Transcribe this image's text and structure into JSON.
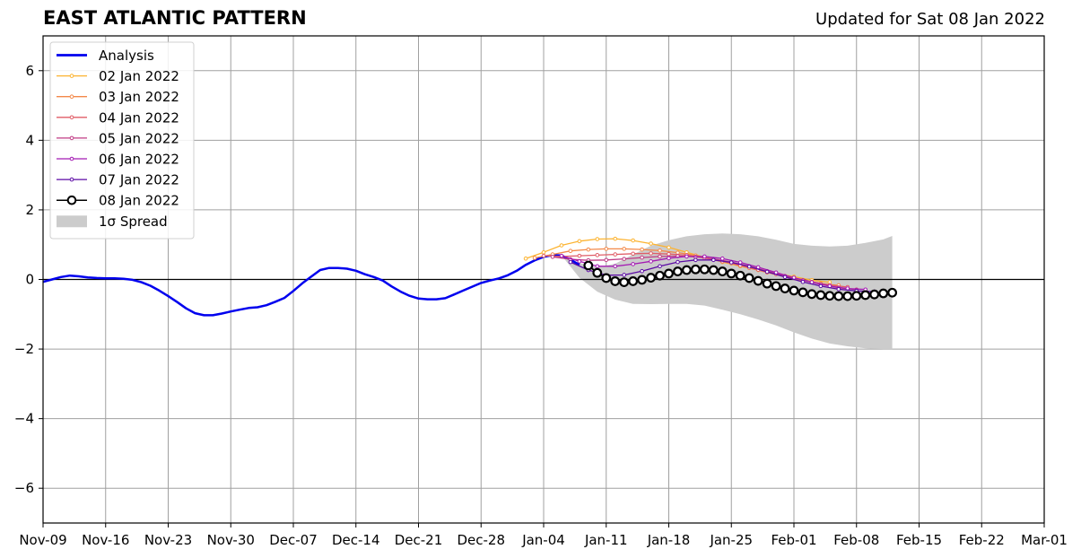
{
  "header": {
    "title": "EAST ATLANTIC PATTERN",
    "updated": "Updated for Sat 08 Jan 2022"
  },
  "chart_data": {
    "type": "line",
    "title": "EAST ATLANTIC PATTERN",
    "xlabel": "",
    "ylabel": "",
    "xlim": [
      "2021-11-09",
      "2022-03-01"
    ],
    "ylim": [
      -7,
      7
    ],
    "grid": true,
    "legend_position": "top-left",
    "x_ticks": [
      "Nov-09",
      "Nov-16",
      "Nov-23",
      "Nov-30",
      "Dec-07",
      "Dec-14",
      "Dec-21",
      "Dec-28",
      "Jan-04",
      "Jan-11",
      "Jan-18",
      "Jan-25",
      "Feb-01",
      "Feb-08",
      "Feb-15",
      "Feb-22",
      "Mar-01"
    ],
    "y_ticks": [
      -6,
      -4,
      -2,
      0,
      2,
      4,
      6
    ],
    "y_tick_labels": [
      "−6",
      "−4",
      "−2",
      "0",
      "2",
      "4",
      "6"
    ],
    "analysis": {
      "name": "Analysis",
      "color": "#0000ee",
      "points": [
        [
          "2021-11-09",
          -0.07
        ],
        [
          "2021-11-10",
          0.0
        ],
        [
          "2021-11-11",
          0.07
        ],
        [
          "2021-11-12",
          0.11
        ],
        [
          "2021-11-13",
          0.09
        ],
        [
          "2021-11-14",
          0.06
        ],
        [
          "2021-11-15",
          0.04
        ],
        [
          "2021-11-16",
          0.03
        ],
        [
          "2021-11-17",
          0.03
        ],
        [
          "2021-11-18",
          0.02
        ],
        [
          "2021-11-19",
          -0.01
        ],
        [
          "2021-11-20",
          -0.08
        ],
        [
          "2021-11-21",
          -0.18
        ],
        [
          "2021-11-22",
          -0.32
        ],
        [
          "2021-11-23",
          -0.48
        ],
        [
          "2021-11-24",
          -0.65
        ],
        [
          "2021-11-25",
          -0.83
        ],
        [
          "2021-11-26",
          -0.97
        ],
        [
          "2021-11-27",
          -1.03
        ],
        [
          "2021-11-28",
          -1.03
        ],
        [
          "2021-11-29",
          -0.98
        ],
        [
          "2021-11-30",
          -0.92
        ],
        [
          "2021-12-01",
          -0.87
        ],
        [
          "2021-12-02",
          -0.82
        ],
        [
          "2021-12-03",
          -0.8
        ],
        [
          "2021-12-04",
          -0.74
        ],
        [
          "2021-12-05",
          -0.64
        ],
        [
          "2021-12-06",
          -0.53
        ],
        [
          "2021-12-07",
          -0.33
        ],
        [
          "2021-12-08",
          -0.11
        ],
        [
          "2021-12-09",
          0.08
        ],
        [
          "2021-12-10",
          0.27
        ],
        [
          "2021-12-11",
          0.33
        ],
        [
          "2021-12-12",
          0.33
        ],
        [
          "2021-12-13",
          0.31
        ],
        [
          "2021-12-14",
          0.25
        ],
        [
          "2021-12-15",
          0.15
        ],
        [
          "2021-12-16",
          0.07
        ],
        [
          "2021-12-17",
          -0.03
        ],
        [
          "2021-12-18",
          -0.2
        ],
        [
          "2021-12-19",
          -0.35
        ],
        [
          "2021-12-20",
          -0.47
        ],
        [
          "2021-12-21",
          -0.55
        ],
        [
          "2021-12-22",
          -0.57
        ],
        [
          "2021-12-23",
          -0.57
        ],
        [
          "2021-12-24",
          -0.54
        ],
        [
          "2021-12-25",
          -0.43
        ],
        [
          "2021-12-26",
          -0.32
        ],
        [
          "2021-12-27",
          -0.21
        ],
        [
          "2021-12-28",
          -0.1
        ],
        [
          "2021-12-29",
          -0.03
        ],
        [
          "2021-12-30",
          0.03
        ],
        [
          "2021-12-31",
          0.12
        ],
        [
          "2022-01-01",
          0.25
        ],
        [
          "2022-01-02",
          0.42
        ],
        [
          "2022-01-03",
          0.55
        ],
        [
          "2022-01-04",
          0.65
        ],
        [
          "2022-01-05",
          0.7
        ],
        [
          "2022-01-06",
          0.69
        ],
        [
          "2022-01-07",
          0.57
        ],
        [
          "2022-01-08",
          0.42
        ]
      ]
    },
    "spread": {
      "name": "1σ Spread",
      "color": "#cccccc",
      "dates": [
        "2022-01-06",
        "2022-01-08",
        "2022-01-10",
        "2022-01-12",
        "2022-01-14",
        "2022-01-16",
        "2022-01-18",
        "2022-01-20",
        "2022-01-22",
        "2022-01-24",
        "2022-01-26",
        "2022-01-28",
        "2022-01-30",
        "2022-02-01",
        "2022-02-03",
        "2022-02-05",
        "2022-02-07",
        "2022-02-09",
        "2022-02-11",
        "2022-02-12"
      ],
      "upper": [
        0.69,
        0.47,
        0.35,
        0.45,
        0.72,
        0.97,
        1.13,
        1.24,
        1.3,
        1.32,
        1.3,
        1.24,
        1.14,
        1.02,
        0.97,
        0.95,
        0.97,
        1.05,
        1.15,
        1.25
      ],
      "lower": [
        0.69,
        0.05,
        -0.35,
        -0.58,
        -0.7,
        -0.71,
        -0.7,
        -0.7,
        -0.75,
        -0.87,
        -1.0,
        -1.15,
        -1.32,
        -1.52,
        -1.7,
        -1.84,
        -1.92,
        -1.98,
        -2.0,
        -2.0
      ]
    },
    "series": [
      {
        "name": "02 Jan 2022",
        "color": "#fcb330",
        "points": [
          [
            "2022-01-02",
            0.6
          ],
          [
            "2022-01-04",
            0.78
          ],
          [
            "2022-01-06",
            0.98
          ],
          [
            "2022-01-08",
            1.1
          ],
          [
            "2022-01-10",
            1.16
          ],
          [
            "2022-01-12",
            1.17
          ],
          [
            "2022-01-14",
            1.12
          ],
          [
            "2022-01-16",
            1.03
          ],
          [
            "2022-01-18",
            0.92
          ],
          [
            "2022-01-20",
            0.78
          ],
          [
            "2022-01-22",
            0.64
          ],
          [
            "2022-01-24",
            0.5
          ],
          [
            "2022-01-26",
            0.38
          ],
          [
            "2022-01-28",
            0.27
          ],
          [
            "2022-01-30",
            0.17
          ],
          [
            "2022-02-01",
            0.08
          ],
          [
            "2022-02-03",
            -0.02
          ],
          [
            "2022-02-05",
            -0.08
          ]
        ]
      },
      {
        "name": "03 Jan 2022",
        "color": "#f3894a",
        "points": [
          [
            "2022-01-03",
            0.62
          ],
          [
            "2022-01-05",
            0.72
          ],
          [
            "2022-01-07",
            0.82
          ],
          [
            "2022-01-09",
            0.86
          ],
          [
            "2022-01-11",
            0.88
          ],
          [
            "2022-01-13",
            0.88
          ],
          [
            "2022-01-15",
            0.86
          ],
          [
            "2022-01-17",
            0.83
          ],
          [
            "2022-01-19",
            0.77
          ],
          [
            "2022-01-21",
            0.69
          ],
          [
            "2022-01-23",
            0.58
          ],
          [
            "2022-01-25",
            0.46
          ],
          [
            "2022-01-27",
            0.33
          ],
          [
            "2022-01-29",
            0.2
          ],
          [
            "2022-01-31",
            0.08
          ],
          [
            "2022-02-02",
            -0.03
          ],
          [
            "2022-02-04",
            -0.12
          ],
          [
            "2022-02-06",
            -0.17
          ]
        ]
      },
      {
        "name": "04 Jan 2022",
        "color": "#e05d67",
        "points": [
          [
            "2022-01-04",
            0.68
          ],
          [
            "2022-01-06",
            0.66
          ],
          [
            "2022-01-08",
            0.68
          ],
          [
            "2022-01-10",
            0.7
          ],
          [
            "2022-01-12",
            0.72
          ],
          [
            "2022-01-14",
            0.74
          ],
          [
            "2022-01-16",
            0.75
          ],
          [
            "2022-01-18",
            0.73
          ],
          [
            "2022-01-20",
            0.7
          ],
          [
            "2022-01-22",
            0.62
          ],
          [
            "2022-01-24",
            0.52
          ],
          [
            "2022-01-26",
            0.4
          ],
          [
            "2022-01-28",
            0.28
          ],
          [
            "2022-01-30",
            0.15
          ],
          [
            "2022-02-01",
            0.04
          ],
          [
            "2022-02-03",
            -0.07
          ],
          [
            "2022-02-05",
            -0.16
          ],
          [
            "2022-02-07",
            -0.22
          ]
        ]
      },
      {
        "name": "05 Jan 2022",
        "color": "#c03b84",
        "points": [
          [
            "2022-01-05",
            0.65
          ],
          [
            "2022-01-07",
            0.58
          ],
          [
            "2022-01-09",
            0.55
          ],
          [
            "2022-01-11",
            0.56
          ],
          [
            "2022-01-13",
            0.59
          ],
          [
            "2022-01-15",
            0.63
          ],
          [
            "2022-01-17",
            0.66
          ],
          [
            "2022-01-19",
            0.67
          ],
          [
            "2022-01-21",
            0.65
          ],
          [
            "2022-01-23",
            0.59
          ],
          [
            "2022-01-25",
            0.5
          ],
          [
            "2022-01-27",
            0.38
          ],
          [
            "2022-01-29",
            0.24
          ],
          [
            "2022-01-31",
            0.1
          ],
          [
            "2022-02-02",
            -0.02
          ],
          [
            "2022-02-04",
            -0.14
          ],
          [
            "2022-02-06",
            -0.24
          ],
          [
            "2022-02-08",
            -0.29
          ]
        ]
      },
      {
        "name": "06 Jan 2022",
        "color": "#a41ab3",
        "points": [
          [
            "2022-01-06",
            0.68
          ],
          [
            "2022-01-08",
            0.52
          ],
          [
            "2022-01-10",
            0.38
          ],
          [
            "2022-01-12",
            0.38
          ],
          [
            "2022-01-14",
            0.44
          ],
          [
            "2022-01-16",
            0.52
          ],
          [
            "2022-01-18",
            0.61
          ],
          [
            "2022-01-20",
            0.66
          ],
          [
            "2022-01-22",
            0.66
          ],
          [
            "2022-01-24",
            0.6
          ],
          [
            "2022-01-26",
            0.49
          ],
          [
            "2022-01-28",
            0.35
          ],
          [
            "2022-01-30",
            0.2
          ],
          [
            "2022-02-01",
            0.05
          ],
          [
            "2022-02-03",
            -0.08
          ],
          [
            "2022-02-05",
            -0.19
          ],
          [
            "2022-02-07",
            -0.26
          ],
          [
            "2022-02-09",
            -0.29
          ]
        ]
      },
      {
        "name": "07 Jan 2022",
        "color": "#5c0aa5",
        "points": [
          [
            "2022-01-07",
            0.5
          ],
          [
            "2022-01-09",
            0.27
          ],
          [
            "2022-01-11",
            0.12
          ],
          [
            "2022-01-13",
            0.13
          ],
          [
            "2022-01-15",
            0.24
          ],
          [
            "2022-01-17",
            0.38
          ],
          [
            "2022-01-19",
            0.5
          ],
          [
            "2022-01-21",
            0.56
          ],
          [
            "2022-01-23",
            0.56
          ],
          [
            "2022-01-25",
            0.49
          ],
          [
            "2022-01-27",
            0.37
          ],
          [
            "2022-01-29",
            0.22
          ],
          [
            "2022-01-31",
            0.07
          ],
          [
            "2022-02-02",
            -0.07
          ],
          [
            "2022-02-04",
            -0.19
          ],
          [
            "2022-02-06",
            -0.28
          ],
          [
            "2022-02-08",
            -0.33
          ],
          [
            "2022-02-10",
            -0.35
          ]
        ]
      },
      {
        "name": "08 Jan 2022",
        "color": "#000000",
        "marker": "open-circle",
        "points": [
          [
            "2022-01-09",
            0.4
          ],
          [
            "2022-01-10",
            0.19
          ],
          [
            "2022-01-11",
            0.04
          ],
          [
            "2022-01-12",
            -0.05
          ],
          [
            "2022-01-13",
            -0.08
          ],
          [
            "2022-01-14",
            -0.05
          ],
          [
            "2022-01-15",
            -0.01
          ],
          [
            "2022-01-16",
            0.05
          ],
          [
            "2022-01-17",
            0.11
          ],
          [
            "2022-01-18",
            0.17
          ],
          [
            "2022-01-19",
            0.23
          ],
          [
            "2022-01-20",
            0.27
          ],
          [
            "2022-01-21",
            0.29
          ],
          [
            "2022-01-22",
            0.29
          ],
          [
            "2022-01-23",
            0.27
          ],
          [
            "2022-01-24",
            0.23
          ],
          [
            "2022-01-25",
            0.17
          ],
          [
            "2022-01-26",
            0.11
          ],
          [
            "2022-01-27",
            0.04
          ],
          [
            "2022-01-28",
            -0.04
          ],
          [
            "2022-01-29",
            -0.12
          ],
          [
            "2022-01-30",
            -0.19
          ],
          [
            "2022-01-31",
            -0.26
          ],
          [
            "2022-02-01",
            -0.32
          ],
          [
            "2022-02-02",
            -0.37
          ],
          [
            "2022-02-03",
            -0.42
          ],
          [
            "2022-02-04",
            -0.45
          ],
          [
            "2022-02-05",
            -0.47
          ],
          [
            "2022-02-06",
            -0.48
          ],
          [
            "2022-02-07",
            -0.48
          ],
          [
            "2022-02-08",
            -0.47
          ],
          [
            "2022-02-09",
            -0.45
          ],
          [
            "2022-02-10",
            -0.43
          ],
          [
            "2022-02-11",
            -0.4
          ],
          [
            "2022-02-12",
            -0.38
          ]
        ]
      }
    ],
    "legend": [
      {
        "label": "Analysis",
        "kind": "thick-line",
        "color": "#0000ee"
      },
      {
        "label": "02 Jan 2022",
        "kind": "line-dot",
        "color": "#fcb330"
      },
      {
        "label": "03 Jan 2022",
        "kind": "line-dot",
        "color": "#f3894a"
      },
      {
        "label": "04 Jan 2022",
        "kind": "line-dot",
        "color": "#e05d67"
      },
      {
        "label": "05 Jan 2022",
        "kind": "line-dot",
        "color": "#c03b84"
      },
      {
        "label": "06 Jan 2022",
        "kind": "line-dot",
        "color": "#a41ab3"
      },
      {
        "label": "07 Jan 2022",
        "kind": "line-dot",
        "color": "#5c0aa5"
      },
      {
        "label": "08 Jan 2022",
        "kind": "line-circle",
        "color": "#000000"
      },
      {
        "label": "1σ Spread",
        "kind": "patch",
        "color": "#cccccc"
      }
    ]
  }
}
